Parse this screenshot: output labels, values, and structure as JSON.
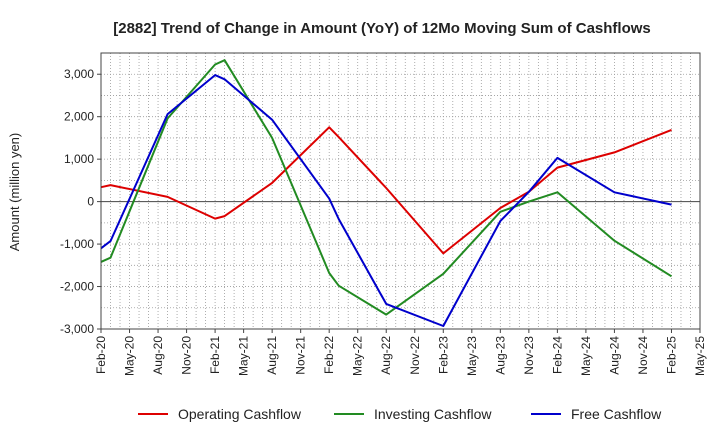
{
  "chart_data": {
    "type": "line",
    "title": "[2882]  Trend of Change in Amount (YoY) of 12Mo Moving Sum of Cashflows",
    "xlabel": "",
    "ylabel": "Amount (million yen)",
    "ylim": [
      -3000,
      3500
    ],
    "yticks": [
      3000,
      2000,
      1000,
      0,
      -1000,
      -2000,
      -3000
    ],
    "ytick_labels": [
      "3,000",
      "2,000",
      "1,000",
      "0",
      "-1,000",
      "-2,000",
      "-3,000"
    ],
    "xlim": [
      0,
      63
    ],
    "xtick_positions": [
      0,
      3,
      6,
      9,
      12,
      15,
      18,
      21,
      24,
      27,
      30,
      33,
      36,
      39,
      42,
      45,
      48,
      51,
      54,
      57,
      60,
      63
    ],
    "xtick_labels": [
      "Feb-20",
      "May-20",
      "Aug-20",
      "Nov-20",
      "Feb-21",
      "May-21",
      "Aug-21",
      "Nov-21",
      "Feb-22",
      "May-22",
      "Aug-22",
      "Nov-22",
      "Feb-23",
      "May-23",
      "Aug-23",
      "Nov-23",
      "Feb-24",
      "May-24",
      "Aug-24",
      "Nov-24",
      "Feb-25",
      "May-25"
    ],
    "grid": true,
    "legend_position": "bottom",
    "series": [
      {
        "name": "Operating Cashflow",
        "color": "#dd0000",
        "points": [
          [
            0,
            340
          ],
          [
            1,
            390
          ],
          [
            7,
            110
          ],
          [
            12,
            -400
          ],
          [
            13,
            -340
          ],
          [
            18,
            440
          ],
          [
            24,
            1750
          ],
          [
            25,
            1520
          ],
          [
            30,
            320
          ],
          [
            36,
            -1220
          ],
          [
            42,
            -150
          ],
          [
            45,
            230
          ],
          [
            48,
            800
          ],
          [
            54,
            1160
          ],
          [
            60,
            1690
          ]
        ]
      },
      {
        "name": "Investing Cashflow",
        "color": "#228b22",
        "points": [
          [
            0,
            -1420
          ],
          [
            1,
            -1320
          ],
          [
            7,
            1960
          ],
          [
            12,
            3230
          ],
          [
            13,
            3330
          ],
          [
            18,
            1500
          ],
          [
            24,
            -1680
          ],
          [
            25,
            -1980
          ],
          [
            30,
            -2660
          ],
          [
            36,
            -1700
          ],
          [
            42,
            -240
          ],
          [
            45,
            0
          ],
          [
            48,
            220
          ],
          [
            54,
            -920
          ],
          [
            60,
            -1760
          ]
        ]
      },
      {
        "name": "Free Cashflow",
        "color": "#0000cc",
        "points": [
          [
            0,
            -1100
          ],
          [
            1,
            -930
          ],
          [
            7,
            2060
          ],
          [
            12,
            2980
          ],
          [
            13,
            2880
          ],
          [
            18,
            1930
          ],
          [
            24,
            70
          ],
          [
            25,
            -410
          ],
          [
            30,
            -2410
          ],
          [
            36,
            -2930
          ],
          [
            42,
            -460
          ],
          [
            45,
            230
          ],
          [
            48,
            1030
          ],
          [
            54,
            220
          ],
          [
            60,
            -70
          ]
        ]
      }
    ]
  }
}
